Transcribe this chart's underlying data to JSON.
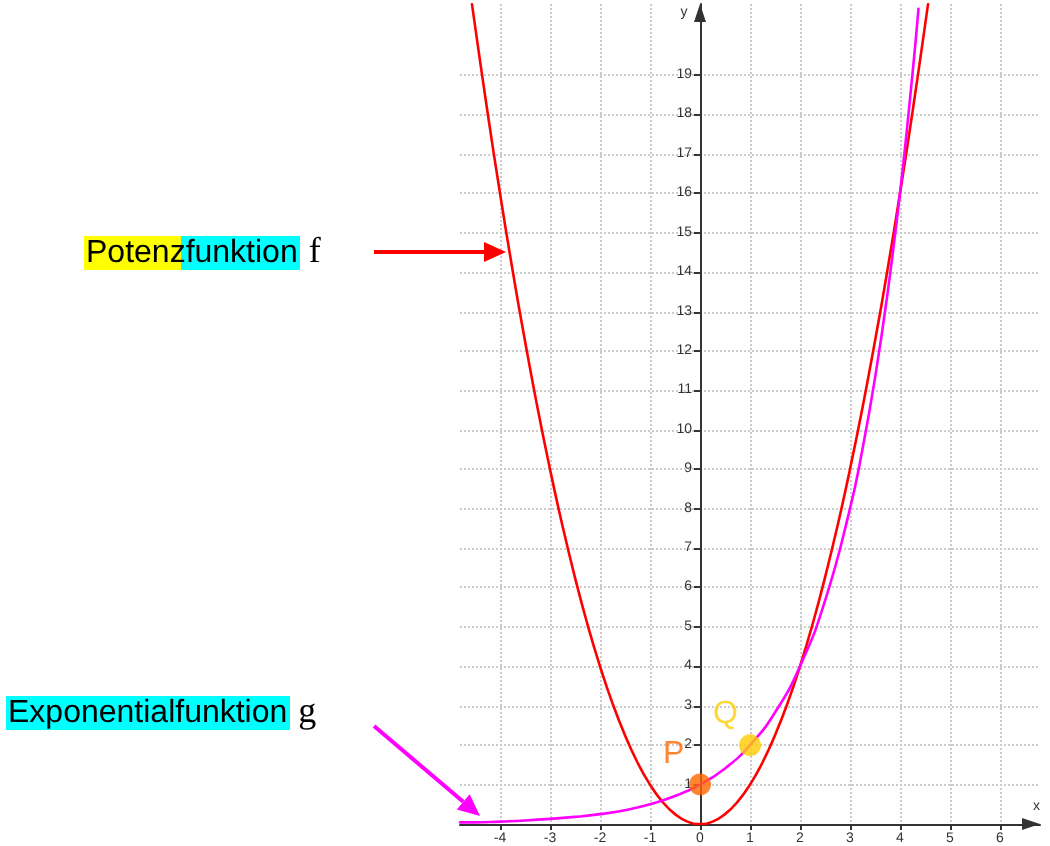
{
  "chart_data": {
    "type": "line",
    "xlabel": "x",
    "ylabel": "y",
    "xlim": [
      -4.8,
      6.8
    ],
    "ylim": [
      0,
      20.8
    ],
    "xticks": [
      -4,
      -3,
      -2,
      -1,
      0,
      1,
      2,
      3,
      4,
      5,
      6
    ],
    "yticks": [
      1,
      2,
      3,
      4,
      5,
      6,
      7,
      8,
      9,
      10,
      11,
      12,
      13,
      14,
      15,
      16,
      17,
      18,
      19
    ],
    "grid": true,
    "marker": "none",
    "line_style": "solid",
    "legend": false,
    "series": [
      {
        "color": "#ff0000",
        "x": [
          -4.56,
          -4.5,
          -4.25,
          -4,
          -3.75,
          -3.5,
          -3.25,
          -3,
          -2.75,
          -2.5,
          -2.25,
          -2,
          -1.75,
          -1.5,
          -1.25,
          -1,
          -0.75,
          -0.5,
          -0.25,
          0,
          0.25,
          0.5,
          0.75,
          1,
          1.25,
          1.5,
          1.75,
          2,
          2.25,
          2.5,
          2.75,
          3,
          3.25,
          3.5,
          3.75,
          4,
          4.25,
          4.5,
          4.56
        ],
        "values": [
          20.79,
          20.25,
          18.06,
          16,
          14.06,
          12.25,
          10.56,
          9,
          7.56,
          6.25,
          5.06,
          4,
          3.06,
          2.25,
          1.56,
          1,
          0.56,
          0.25,
          0.06,
          0,
          0.06,
          0.25,
          0.56,
          1,
          1.56,
          2.25,
          3.06,
          4,
          5.06,
          6.25,
          7.56,
          9,
          10.56,
          12.25,
          14.06,
          16,
          18.06,
          20.25,
          20.79
        ]
      },
      {
        "color": "#ff00ff",
        "x": [
          -4.8,
          -4.5,
          -4,
          -3.5,
          -3,
          -2.5,
          -2,
          -1.5,
          -1,
          -0.5,
          0,
          0.5,
          1,
          1.5,
          2,
          2.5,
          3,
          3.25,
          3.5,
          3.75,
          4,
          4.25,
          4.37
        ],
        "values": [
          0.04,
          0.04,
          0.06,
          0.09,
          0.13,
          0.18,
          0.25,
          0.35,
          0.5,
          0.71,
          1,
          1.41,
          2,
          2.83,
          4,
          5.66,
          8,
          9.51,
          11.31,
          13.45,
          16,
          19.03,
          20.68
        ]
      },
      {
        "type": "scatter",
        "name": "P",
        "color": "#ff6600",
        "marker": "circle",
        "x": [
          0
        ],
        "values": [
          1
        ]
      },
      {
        "type": "scatter",
        "name": "Q",
        "color": "#ffcc00",
        "marker": "circle",
        "x": [
          1
        ],
        "values": [
          2
        ]
      }
    ],
    "annotations": [
      "Potenzfunktion f",
      "Exponentialfunktion g"
    ]
  }
}
